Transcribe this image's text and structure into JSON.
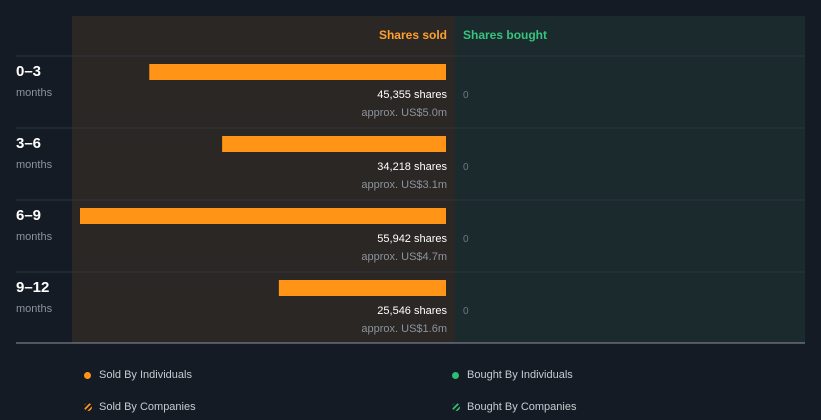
{
  "chart_data": {
    "type": "bar",
    "columns": {
      "sold_label": "Shares sold",
      "bought_label": "Shares bought"
    },
    "categories": [
      {
        "period": "0–3",
        "unit": "months"
      },
      {
        "period": "3–6",
        "unit": "months"
      },
      {
        "period": "6–9",
        "unit": "months"
      },
      {
        "period": "9–12",
        "unit": "months"
      }
    ],
    "series": [
      {
        "key": "sold",
        "values": [
          45355,
          34218,
          55942,
          25546
        ],
        "labels": [
          "45,355 shares",
          "34,218 shares",
          "55,942 shares",
          "25,546 shares"
        ],
        "value_labels": [
          "approx. US$5.0m",
          "approx. US$3.1m",
          "approx. US$4.7m",
          "approx. US$1.6m"
        ]
      },
      {
        "key": "bought",
        "values": [
          0,
          0,
          0,
          0
        ],
        "labels": [
          "0",
          "0",
          "0",
          "0"
        ]
      }
    ],
    "xlim": [
      0,
      55942
    ]
  },
  "legend": [
    {
      "label": "Sold By Individuals",
      "marker": "dot",
      "color": "#ff9416"
    },
    {
      "label": "Bought By Individuals",
      "marker": "dot",
      "color": "#2ebd74"
    },
    {
      "label": "Sold By Companies",
      "marker": "striped-dot",
      "color": "#ff9416"
    },
    {
      "label": "Bought By Companies",
      "marker": "striped-dot",
      "color": "#2ebd74"
    }
  ],
  "colors": {
    "background": "#151b24",
    "sold_panel": "#2b2724",
    "bought_panel": "#1b2a2c",
    "sold_bar": "#ff9416",
    "sold_header": "#ff9f2f",
    "bought_header": "#36c47e",
    "text_primary": "#ffffff",
    "text_muted": "#8c939b"
  }
}
